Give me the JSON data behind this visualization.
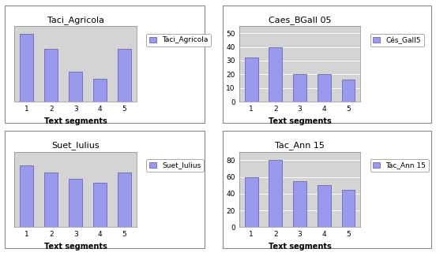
{
  "charts": [
    {
      "title": "Taci_Agricola",
      "legend_label": "Taci_Agricola",
      "values": [
        9,
        7,
        4,
        3,
        7
      ],
      "ylim": [
        0,
        10
      ],
      "yticks": [],
      "show_yticks": false,
      "row": 0,
      "col": 0
    },
    {
      "title": "Caes_BGall 05",
      "legend_label": "Cés_Gall5",
      "values": [
        32,
        40,
        20,
        20,
        16
      ],
      "ylim": [
        0,
        55
      ],
      "yticks": [
        0,
        10,
        20,
        30,
        40,
        50
      ],
      "show_yticks": true,
      "row": 0,
      "col": 1
    },
    {
      "title": "Suet_Iulius",
      "legend_label": "Suet_Iulius",
      "values": [
        9,
        8,
        7,
        6.5,
        8
      ],
      "ylim": [
        0,
        11
      ],
      "yticks": [],
      "show_yticks": false,
      "row": 1,
      "col": 0
    },
    {
      "title": "Tac_Ann 15",
      "legend_label": "Tac_Ann 15",
      "values": [
        60,
        80,
        55,
        50,
        45
      ],
      "ylim": [
        0,
        90
      ],
      "yticks": [
        0,
        20,
        40,
        60,
        80
      ],
      "show_yticks": true,
      "row": 1,
      "col": 1
    }
  ],
  "bar_color": "#9999ee",
  "bar_edge_color": "#5555bb",
  "bg_color": "#d4d4d4",
  "outer_bg": "#f0f0f0",
  "xlabel": "Text segments",
  "xlabel_fontsize": 7,
  "title_fontsize": 8,
  "tick_fontsize": 6.5,
  "legend_fontsize": 6.5,
  "categories": [
    "1",
    "2",
    "3",
    "4",
    "5"
  ]
}
